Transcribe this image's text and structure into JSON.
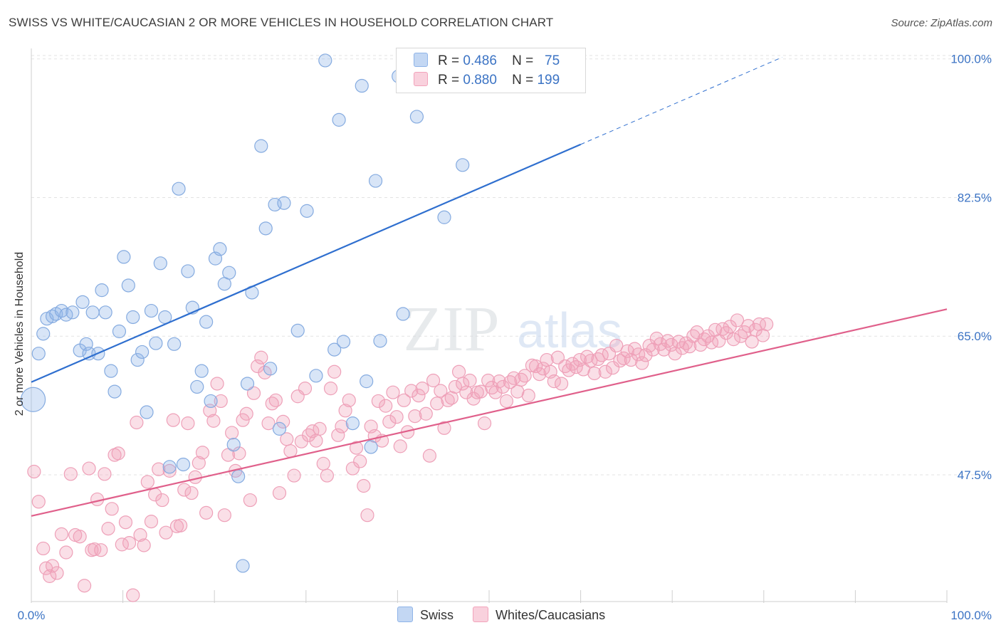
{
  "title": "SWISS VS WHITE/CAUCASIAN 2 OR MORE VEHICLES IN HOUSEHOLD CORRELATION CHART",
  "source": "Source: ZipAtlas.com",
  "watermark": {
    "zip": "ZIP",
    "atlas": "atlas"
  },
  "legend": {
    "swiss": {
      "r_label": "R =",
      "r_value": "0.486",
      "n_label": "N =",
      "n_value": "75"
    },
    "white": {
      "r_label": "R =",
      "r_value": "0.880",
      "n_label": "N =",
      "n_value": "199"
    }
  },
  "bottom_legend": {
    "swiss": "Swiss",
    "white": "Whites/Caucasians"
  },
  "colors": {
    "swiss": "#8fb4e8",
    "swiss_line": "#2f6fcf",
    "white": "#f2a3bb",
    "white_line": "#e0608b",
    "tick_text": "#3b73c4"
  },
  "chart_data": {
    "type": "scatter",
    "title": "SWISS VS WHITE/CAUCASIAN 2 OR MORE VEHICLES IN HOUSEHOLD CORRELATION CHART",
    "xlabel": "",
    "ylabel": "2 or more Vehicles in Household",
    "xlim": [
      0,
      100
    ],
    "ylim": [
      31.5,
      101.5
    ],
    "x_tick_labels": [
      "0.0%",
      "100.0%"
    ],
    "y_ticks": [
      47.5,
      65.0,
      82.5,
      100.0
    ],
    "y_tick_labels": [
      "47.5%",
      "65.0%",
      "82.5%",
      "100.0%"
    ],
    "grid": true,
    "series": [
      {
        "name": "Swiss",
        "r": 0.486,
        "n": 75,
        "trend": {
          "x": [
            0,
            60
          ],
          "y": [
            59.2,
            89.2
          ],
          "dashed_to": [
            82,
            100.2
          ]
        },
        "points": [
          [
            0.2,
            57.0
          ],
          [
            0.8,
            62.8
          ],
          [
            1.3,
            65.3
          ],
          [
            1.7,
            67.2
          ],
          [
            2.3,
            67.5
          ],
          [
            2.7,
            67.8
          ],
          [
            3.3,
            68.2
          ],
          [
            3.8,
            67.7
          ],
          [
            4.5,
            68.0
          ],
          [
            5.3,
            63.2
          ],
          [
            5.6,
            69.3
          ],
          [
            6.0,
            64.0
          ],
          [
            6.3,
            62.8
          ],
          [
            6.7,
            68.0
          ],
          [
            7.3,
            62.8
          ],
          [
            7.7,
            70.8
          ],
          [
            8.1,
            68.0
          ],
          [
            8.7,
            60.6
          ],
          [
            9.1,
            58.0
          ],
          [
            9.6,
            65.6
          ],
          [
            10.1,
            75.0
          ],
          [
            10.6,
            71.4
          ],
          [
            11.1,
            67.4
          ],
          [
            11.6,
            62.0
          ],
          [
            12.1,
            63.0
          ],
          [
            12.6,
            55.4
          ],
          [
            13.1,
            68.2
          ],
          [
            13.6,
            64.1
          ],
          [
            14.1,
            74.2
          ],
          [
            14.6,
            67.4
          ],
          [
            15.1,
            48.5
          ],
          [
            15.6,
            64.0
          ],
          [
            16.1,
            83.6
          ],
          [
            16.6,
            48.8
          ],
          [
            17.1,
            73.2
          ],
          [
            17.6,
            68.6
          ],
          [
            18.1,
            58.6
          ],
          [
            18.6,
            60.6
          ],
          [
            19.1,
            66.8
          ],
          [
            19.6,
            56.8
          ],
          [
            20.1,
            74.8
          ],
          [
            20.6,
            76.0
          ],
          [
            21.1,
            71.6
          ],
          [
            21.6,
            73.0
          ],
          [
            22.1,
            51.3
          ],
          [
            22.6,
            47.3
          ],
          [
            23.1,
            36.0
          ],
          [
            23.6,
            59.0
          ],
          [
            24.1,
            70.5
          ],
          [
            25.1,
            89.0
          ],
          [
            25.6,
            78.6
          ],
          [
            26.1,
            60.9
          ],
          [
            26.6,
            81.6
          ],
          [
            27.1,
            53.3
          ],
          [
            27.6,
            81.8
          ],
          [
            29.1,
            65.7
          ],
          [
            30.1,
            80.8
          ],
          [
            31.1,
            60.0
          ],
          [
            32.1,
            99.8
          ],
          [
            33.1,
            63.3
          ],
          [
            33.6,
            92.3
          ],
          [
            34.1,
            64.3
          ],
          [
            35.1,
            54.0
          ],
          [
            36.1,
            96.6
          ],
          [
            36.6,
            59.3
          ],
          [
            37.1,
            51.0
          ],
          [
            37.6,
            84.6
          ],
          [
            38.1,
            64.4
          ],
          [
            40.1,
            97.8
          ],
          [
            40.6,
            67.8
          ],
          [
            41.1,
            99.7
          ],
          [
            41.6,
            97.6
          ],
          [
            42.1,
            92.7
          ],
          [
            45.1,
            80.0
          ],
          [
            47.1,
            86.6
          ]
        ]
      },
      {
        "name": "Whites/Caucasians",
        "r": 0.88,
        "n": 199,
        "trend": {
          "x": [
            0,
            100
          ],
          "y": [
            42.3,
            68.4
          ]
        },
        "points": [
          [
            0.3,
            47.9
          ],
          [
            0.8,
            44.1
          ],
          [
            1.3,
            38.2
          ],
          [
            1.6,
            35.7
          ],
          [
            2.0,
            34.7
          ],
          [
            2.3,
            36.0
          ],
          [
            2.8,
            35.1
          ],
          [
            3.3,
            40.0
          ],
          [
            3.8,
            37.7
          ],
          [
            4.3,
            47.6
          ],
          [
            4.8,
            39.9
          ],
          [
            5.3,
            39.7
          ],
          [
            5.8,
            33.5
          ],
          [
            6.3,
            48.3
          ],
          [
            6.6,
            38.0
          ],
          [
            6.9,
            38.1
          ],
          [
            7.2,
            44.4
          ],
          [
            7.6,
            38.0
          ],
          [
            8.0,
            47.6
          ],
          [
            8.4,
            40.7
          ],
          [
            8.8,
            43.2
          ],
          [
            9.1,
            50.0
          ],
          [
            9.5,
            50.2
          ],
          [
            9.9,
            38.7
          ],
          [
            10.3,
            41.5
          ],
          [
            10.7,
            38.9
          ],
          [
            11.1,
            32.3
          ],
          [
            11.5,
            54.1
          ],
          [
            11.9,
            39.9
          ],
          [
            12.3,
            38.6
          ],
          [
            12.7,
            46.6
          ],
          [
            13.1,
            41.6
          ],
          [
            13.5,
            45.0
          ],
          [
            13.9,
            48.2
          ],
          [
            14.3,
            44.3
          ],
          [
            14.7,
            40.2
          ],
          [
            15.1,
            48.0
          ],
          [
            15.5,
            54.4
          ],
          [
            15.9,
            41.0
          ],
          [
            16.3,
            41.1
          ],
          [
            16.7,
            45.6
          ],
          [
            17.1,
            54.0
          ],
          [
            17.5,
            45.2
          ],
          [
            17.9,
            47.2
          ],
          [
            18.3,
            49.0
          ],
          [
            18.7,
            50.3
          ],
          [
            19.1,
            42.7
          ],
          [
            19.5,
            55.6
          ],
          [
            19.9,
            54.3
          ],
          [
            20.3,
            59.0
          ],
          [
            20.7,
            56.8
          ],
          [
            21.1,
            42.4
          ],
          [
            21.5,
            50.0
          ],
          [
            21.9,
            52.8
          ],
          [
            22.3,
            48.0
          ],
          [
            22.7,
            50.2
          ],
          [
            23.1,
            54.4
          ],
          [
            23.5,
            55.2
          ],
          [
            23.9,
            44.3
          ],
          [
            24.3,
            57.8
          ],
          [
            24.7,
            61.2
          ],
          [
            25.1,
            62.3
          ],
          [
            25.5,
            60.4
          ],
          [
            25.9,
            54.0
          ],
          [
            26.3,
            56.5
          ],
          [
            26.7,
            56.9
          ],
          [
            27.1,
            45.2
          ],
          [
            27.5,
            54.2
          ],
          [
            27.9,
            52.0
          ],
          [
            28.3,
            50.5
          ],
          [
            28.7,
            47.4
          ],
          [
            29.1,
            57.4
          ],
          [
            29.5,
            51.7
          ],
          [
            29.9,
            58.4
          ],
          [
            30.3,
            52.5
          ],
          [
            30.7,
            53.0
          ],
          [
            31.1,
            51.8
          ],
          [
            31.5,
            53.3
          ],
          [
            31.9,
            48.9
          ],
          [
            32.3,
            47.4
          ],
          [
            32.7,
            58.4
          ],
          [
            33.1,
            60.5
          ],
          [
            33.5,
            52.5
          ],
          [
            33.9,
            53.6
          ],
          [
            34.3,
            55.6
          ],
          [
            34.7,
            56.9
          ],
          [
            35.1,
            48.3
          ],
          [
            35.5,
            50.9
          ],
          [
            35.9,
            49.2
          ],
          [
            36.3,
            46.1
          ],
          [
            36.7,
            42.4
          ],
          [
            37.1,
            53.6
          ],
          [
            37.5,
            52.4
          ],
          [
            37.9,
            56.8
          ],
          [
            38.3,
            51.8
          ],
          [
            38.7,
            56.2
          ],
          [
            39.1,
            54.2
          ],
          [
            39.5,
            57.9
          ],
          [
            39.9,
            54.8
          ],
          [
            40.3,
            51.1
          ],
          [
            40.7,
            56.9
          ],
          [
            41.1,
            52.9
          ],
          [
            41.5,
            58.1
          ],
          [
            41.9,
            54.9
          ],
          [
            42.3,
            57.5
          ],
          [
            42.7,
            58.4
          ],
          [
            43.1,
            55.2
          ],
          [
            43.5,
            49.9
          ],
          [
            43.9,
            59.4
          ],
          [
            44.3,
            56.5
          ],
          [
            44.7,
            58.1
          ],
          [
            45.1,
            53.4
          ],
          [
            45.5,
            56.9
          ],
          [
            45.9,
            57.2
          ],
          [
            46.3,
            58.6
          ],
          [
            46.7,
            60.5
          ],
          [
            47.1,
            59.0
          ],
          [
            47.5,
            57.9
          ],
          [
            47.9,
            59.4
          ],
          [
            48.3,
            57.1
          ],
          [
            48.7,
            57.9
          ],
          [
            49.1,
            58.0
          ],
          [
            49.5,
            54.0
          ],
          [
            49.9,
            59.4
          ],
          [
            50.3,
            58.5
          ],
          [
            50.7,
            57.9
          ],
          [
            51.1,
            59.3
          ],
          [
            51.5,
            58.6
          ],
          [
            51.9,
            56.8
          ],
          [
            52.3,
            59.2
          ],
          [
            52.7,
            59.7
          ],
          [
            53.1,
            58.0
          ],
          [
            53.5,
            59.5
          ],
          [
            53.9,
            60.0
          ],
          [
            54.3,
            57.5
          ],
          [
            54.7,
            61.3
          ],
          [
            55.1,
            61.2
          ],
          [
            55.5,
            60.2
          ],
          [
            55.9,
            60.9
          ],
          [
            56.3,
            62.0
          ],
          [
            56.7,
            60.5
          ],
          [
            57.1,
            59.3
          ],
          [
            57.5,
            62.3
          ],
          [
            57.9,
            59.0
          ],
          [
            58.3,
            61.2
          ],
          [
            58.7,
            60.7
          ],
          [
            59.1,
            61.5
          ],
          [
            59.5,
            61.1
          ],
          [
            59.9,
            62.0
          ],
          [
            60.3,
            60.8
          ],
          [
            60.7,
            62.4
          ],
          [
            61.1,
            61.9
          ],
          [
            61.5,
            60.3
          ],
          [
            61.9,
            62.1
          ],
          [
            62.3,
            62.6
          ],
          [
            62.7,
            60.5
          ],
          [
            63.1,
            62.8
          ],
          [
            63.5,
            61.0
          ],
          [
            63.9,
            63.8
          ],
          [
            64.3,
            61.9
          ],
          [
            64.7,
            62.2
          ],
          [
            65.1,
            63.1
          ],
          [
            65.5,
            62.0
          ],
          [
            65.9,
            63.4
          ],
          [
            66.3,
            62.7
          ],
          [
            66.7,
            61.6
          ],
          [
            67.1,
            62.6
          ],
          [
            67.5,
            63.8
          ],
          [
            67.9,
            63.3
          ],
          [
            68.3,
            64.7
          ],
          [
            68.7,
            64.0
          ],
          [
            69.1,
            63.3
          ],
          [
            69.5,
            64.4
          ],
          [
            69.9,
            63.9
          ],
          [
            70.3,
            62.8
          ],
          [
            70.7,
            64.3
          ],
          [
            71.1,
            63.5
          ],
          [
            71.5,
            64.1
          ],
          [
            71.9,
            63.7
          ],
          [
            72.3,
            65.0
          ],
          [
            72.7,
            65.5
          ],
          [
            73.1,
            63.9
          ],
          [
            73.5,
            64.6
          ],
          [
            73.9,
            65.0
          ],
          [
            74.3,
            64.2
          ],
          [
            74.7,
            65.8
          ],
          [
            75.1,
            64.4
          ],
          [
            75.5,
            65.9
          ],
          [
            75.9,
            65.4
          ],
          [
            76.3,
            66.2
          ],
          [
            76.7,
            64.6
          ],
          [
            77.1,
            67.0
          ],
          [
            77.5,
            65.0
          ],
          [
            77.9,
            65.5
          ],
          [
            78.3,
            66.3
          ],
          [
            78.7,
            64.3
          ],
          [
            79.1,
            65.8
          ],
          [
            79.5,
            66.5
          ],
          [
            79.9,
            65.1
          ],
          [
            80.3,
            66.5
          ]
        ]
      }
    ]
  }
}
